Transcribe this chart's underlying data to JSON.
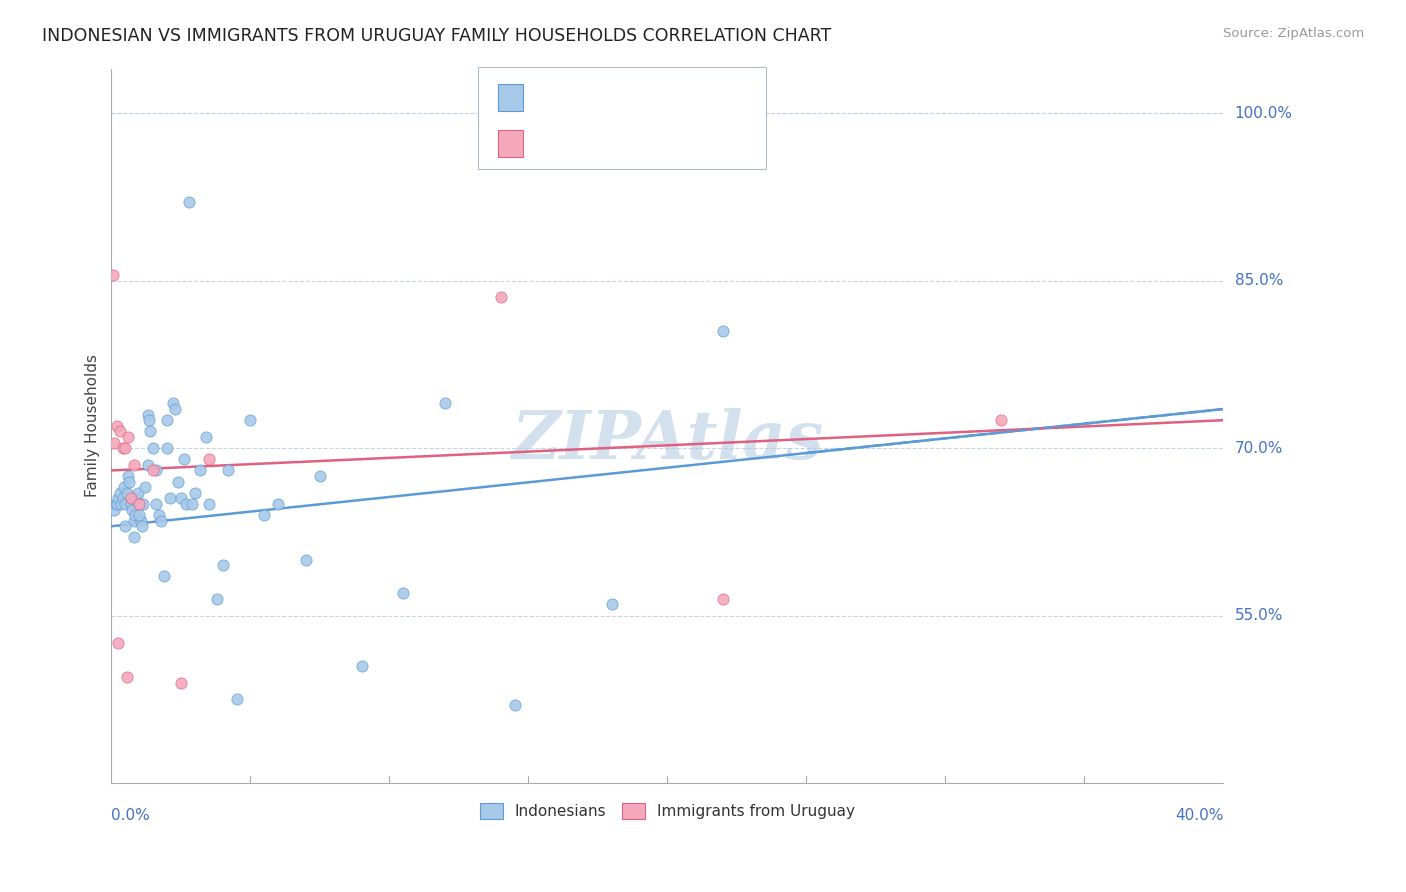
{
  "title": "INDONESIAN VS IMMIGRANTS FROM URUGUAY FAMILY HOUSEHOLDS CORRELATION CHART",
  "source": "Source: ZipAtlas.com",
  "ylabel": "Family Households",
  "ytick_vals": [
    55.0,
    70.0,
    85.0,
    100.0
  ],
  "xlim": [
    0.0,
    40.0
  ],
  "ylim": [
    40.0,
    104.0
  ],
  "color_blue": "#a8c8e8",
  "color_pink": "#f4a8bc",
  "line_blue": "#5b9bd5",
  "line_pink": "#e06080",
  "text_color": "#4472c4",
  "grid_color": "#c8d4e4",
  "indonesians_x": [
    0.1,
    0.15,
    0.2,
    0.25,
    0.3,
    0.35,
    0.4,
    0.45,
    0.5,
    0.55,
    0.6,
    0.65,
    0.7,
    0.75,
    0.8,
    0.85,
    0.9,
    0.95,
    1.0,
    1.05,
    1.1,
    1.15,
    1.2,
    1.3,
    1.35,
    1.4,
    1.5,
    1.6,
    1.7,
    1.8,
    1.9,
    2.0,
    2.1,
    2.2,
    2.3,
    2.5,
    2.6,
    2.7,
    2.8,
    3.0,
    3.2,
    3.5,
    3.8,
    4.0,
    4.5,
    5.0,
    6.0,
    7.5,
    9.0,
    10.5,
    12.0,
    14.5,
    18.0,
    22.0,
    0.5,
    0.8,
    1.0,
    1.3,
    1.6,
    2.0,
    2.4,
    2.9,
    3.4,
    4.2,
    5.5,
    7.0
  ],
  "indonesians_y": [
    64.5,
    65.0,
    65.0,
    65.5,
    66.0,
    65.0,
    65.5,
    66.5,
    65.0,
    66.0,
    67.5,
    67.0,
    65.0,
    64.5,
    63.5,
    64.0,
    65.5,
    66.0,
    65.0,
    63.5,
    63.0,
    65.0,
    66.5,
    73.0,
    72.5,
    71.5,
    70.0,
    65.0,
    64.0,
    63.5,
    58.5,
    72.5,
    65.5,
    74.0,
    73.5,
    65.5,
    69.0,
    65.0,
    92.0,
    66.0,
    68.0,
    65.0,
    56.5,
    59.5,
    47.5,
    72.5,
    65.0,
    67.5,
    50.5,
    57.0,
    74.0,
    47.0,
    56.0,
    80.5,
    63.0,
    62.0,
    64.0,
    68.5,
    68.0,
    70.0,
    67.0,
    65.0,
    71.0,
    68.0,
    64.0,
    60.0
  ],
  "uruguay_x": [
    0.05,
    0.1,
    0.2,
    0.3,
    0.4,
    0.5,
    0.6,
    0.7,
    0.8,
    1.0,
    1.5,
    2.5,
    3.5,
    14.0,
    22.0,
    32.0,
    0.25,
    0.55
  ],
  "uruguay_y": [
    85.5,
    70.5,
    72.0,
    71.5,
    70.0,
    70.0,
    71.0,
    65.5,
    68.5,
    65.0,
    68.0,
    49.0,
    69.0,
    83.5,
    56.5,
    72.5,
    52.5,
    49.5
  ],
  "watermark": "ZIPAtlas"
}
